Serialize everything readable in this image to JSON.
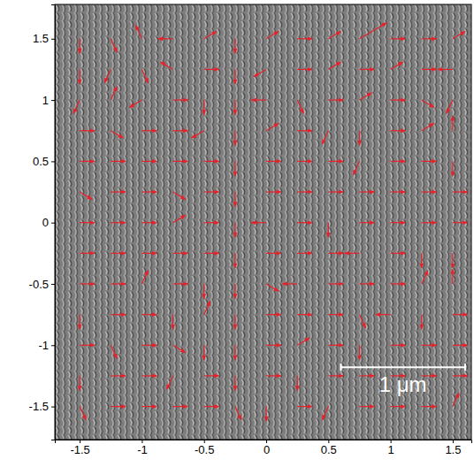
{
  "chart_data": {
    "type": "quiver",
    "color": "#e8202a",
    "xlim": [
      -1.7,
      1.65
    ],
    "ylim": [
      -1.77,
      1.78
    ],
    "xticks": [
      -1.5,
      -1,
      -0.5,
      0,
      0.5,
      1,
      1.5
    ],
    "yticks": [
      -1.5,
      -1,
      -0.5,
      0,
      0.5,
      1,
      1.5
    ],
    "annotations": [
      {
        "text": "1 μm",
        "x": [
          0.6,
          1.6
        ],
        "y": -1.18
      }
    ],
    "arrows": [
      {
        "x": -1.5,
        "y": 1.5,
        "u": 0,
        "v": -0.12
      },
      {
        "x": -1.25,
        "y": 1.5,
        "u": 0.05,
        "v": -0.11
      },
      {
        "x": -1,
        "y": 1.5,
        "u": -0.05,
        "v": 0.11
      },
      {
        "x": -0.75,
        "y": 1.5,
        "u": -0.12,
        "v": 0
      },
      {
        "x": -0.5,
        "y": 1.5,
        "u": 0.1,
        "v": 0.06
      },
      {
        "x": -0.25,
        "y": 1.5,
        "u": 0,
        "v": -0.12
      },
      {
        "x": 0,
        "y": 1.5,
        "u": 0.1,
        "v": 0.06
      },
      {
        "x": 0.25,
        "y": 1.5,
        "u": 0.12,
        "v": 0
      },
      {
        "x": 0.5,
        "y": 1.5,
        "u": 0.1,
        "v": 0.06
      },
      {
        "x": 0.75,
        "y": 1.5,
        "u": 0.22,
        "v": 0.13
      },
      {
        "x": 1,
        "y": 1.5,
        "u": 0.12,
        "v": 0
      },
      {
        "x": 1.25,
        "y": 1.5,
        "u": 0.12,
        "v": 0
      },
      {
        "x": 1.5,
        "y": 1.5,
        "u": 0.1,
        "v": 0.06
      },
      {
        "x": -1.5,
        "y": 1.25,
        "u": 0,
        "v": -0.12
      },
      {
        "x": -1.25,
        "y": 1.25,
        "u": -0.05,
        "v": -0.11
      },
      {
        "x": -1,
        "y": 1.25,
        "u": 0.05,
        "v": -0.11
      },
      {
        "x": -0.75,
        "y": 1.25,
        "u": -0.1,
        "v": 0.06
      },
      {
        "x": -0.5,
        "y": 1.25,
        "u": 0.12,
        "v": 0
      },
      {
        "x": -0.25,
        "y": 1.25,
        "u": 0,
        "v": -0.12
      },
      {
        "x": 0,
        "y": 1.25,
        "u": -0.1,
        "v": -0.06
      },
      {
        "x": 0.25,
        "y": 1.25,
        "u": 0.12,
        "v": 0
      },
      {
        "x": 0.5,
        "y": 1.25,
        "u": 0.1,
        "v": 0.06
      },
      {
        "x": 0.75,
        "y": 1.25,
        "u": 0.12,
        "v": 0
      },
      {
        "x": 1,
        "y": 1.25,
        "u": 0.1,
        "v": 0.06
      },
      {
        "x": 1.25,
        "y": 1.25,
        "u": 0.12,
        "v": 0
      },
      {
        "x": 1.5,
        "y": 1.25,
        "u": -0.12,
        "v": 0
      },
      {
        "x": -1.5,
        "y": 1,
        "u": -0.05,
        "v": -0.11
      },
      {
        "x": -1.25,
        "y": 1,
        "u": 0.05,
        "v": 0.11
      },
      {
        "x": -1,
        "y": 1,
        "u": -0.1,
        "v": -0.06
      },
      {
        "x": -0.75,
        "y": 1,
        "u": 0.12,
        "v": 0
      },
      {
        "x": -0.5,
        "y": 1,
        "u": 0,
        "v": -0.12
      },
      {
        "x": -0.25,
        "y": 1,
        "u": 0,
        "v": -0.12
      },
      {
        "x": 0,
        "y": 1,
        "u": -0.12,
        "v": 0
      },
      {
        "x": 0.25,
        "y": 1,
        "u": 0.05,
        "v": -0.11
      },
      {
        "x": 0.5,
        "y": 1,
        "u": 0.12,
        "v": 0
      },
      {
        "x": 0.75,
        "y": 1,
        "u": 0.1,
        "v": 0.06
      },
      {
        "x": 1,
        "y": 1,
        "u": 0.12,
        "v": 0
      },
      {
        "x": 1.25,
        "y": 1,
        "u": 0.1,
        "v": -0.06
      },
      {
        "x": 1.5,
        "y": 1,
        "u": -0.05,
        "v": -0.11
      },
      {
        "x": -1.5,
        "y": 0.75,
        "u": 0.12,
        "v": 0
      },
      {
        "x": -1.25,
        "y": 0.75,
        "u": 0.1,
        "v": -0.06
      },
      {
        "x": -1,
        "y": 0.75,
        "u": 0.12,
        "v": 0
      },
      {
        "x": -0.75,
        "y": 0.75,
        "u": 0.12,
        "v": 0
      },
      {
        "x": -0.5,
        "y": 0.75,
        "u": -0.1,
        "v": -0.06
      },
      {
        "x": -0.25,
        "y": 0.75,
        "u": 0,
        "v": -0.12
      },
      {
        "x": 0,
        "y": 0.75,
        "u": 0.1,
        "v": 0.06
      },
      {
        "x": 0.25,
        "y": 0.75,
        "u": 0.12,
        "v": 0
      },
      {
        "x": 0.5,
        "y": 0.75,
        "u": -0.05,
        "v": -0.11
      },
      {
        "x": 0.75,
        "y": 0.75,
        "u": 0,
        "v": -0.12
      },
      {
        "x": 1,
        "y": 0.75,
        "u": 0.12,
        "v": 0
      },
      {
        "x": 1.25,
        "y": 0.75,
        "u": 0.1,
        "v": 0.06
      },
      {
        "x": 1.5,
        "y": 0.75,
        "u": 0,
        "v": 0.12
      },
      {
        "x": -1.5,
        "y": 0.5,
        "u": 0.12,
        "v": 0
      },
      {
        "x": -1.25,
        "y": 0.5,
        "u": 0.12,
        "v": 0
      },
      {
        "x": -1,
        "y": 0.5,
        "u": 0.12,
        "v": 0
      },
      {
        "x": -0.75,
        "y": 0.5,
        "u": 0.12,
        "v": 0
      },
      {
        "x": -0.5,
        "y": 0.5,
        "u": 0.12,
        "v": 0
      },
      {
        "x": -0.25,
        "y": 0.5,
        "u": 0,
        "v": -0.12
      },
      {
        "x": 0,
        "y": 0.5,
        "u": 0.12,
        "v": 0
      },
      {
        "x": 0.25,
        "y": 0.5,
        "u": 0.12,
        "v": 0
      },
      {
        "x": 0.5,
        "y": 0.5,
        "u": 0.12,
        "v": 0
      },
      {
        "x": 0.75,
        "y": 0.5,
        "u": -0.05,
        "v": -0.11
      },
      {
        "x": 1,
        "y": 0.5,
        "u": 0.12,
        "v": 0
      },
      {
        "x": 1.25,
        "y": 0.5,
        "u": 0.12,
        "v": 0
      },
      {
        "x": 1.5,
        "y": 0.5,
        "u": 0,
        "v": -0.12
      },
      {
        "x": -1.5,
        "y": 0.25,
        "u": 0.1,
        "v": -0.06
      },
      {
        "x": -1.25,
        "y": 0.25,
        "u": 0.12,
        "v": 0
      },
      {
        "x": -1,
        "y": 0.25,
        "u": 0.12,
        "v": 0
      },
      {
        "x": -0.75,
        "y": 0.25,
        "u": 0.1,
        "v": -0.06
      },
      {
        "x": -0.5,
        "y": 0.25,
        "u": 0.12,
        "v": 0
      },
      {
        "x": -0.25,
        "y": 0.25,
        "u": 0,
        "v": -0.12
      },
      {
        "x": 0,
        "y": 0.25,
        "u": 0.12,
        "v": 0
      },
      {
        "x": 0.25,
        "y": 0.25,
        "u": 0.12,
        "v": 0
      },
      {
        "x": 0.5,
        "y": 0.25,
        "u": 0.12,
        "v": 0
      },
      {
        "x": 0.75,
        "y": 0.25,
        "u": 0.12,
        "v": 0
      },
      {
        "x": 1,
        "y": 0.25,
        "u": 0.12,
        "v": 0
      },
      {
        "x": 1.25,
        "y": 0.25,
        "u": 0.12,
        "v": 0
      },
      {
        "x": 1.5,
        "y": 0.25,
        "u": 0.12,
        "v": 0
      },
      {
        "x": -1.5,
        "y": 0,
        "u": 0.12,
        "v": 0
      },
      {
        "x": -1.25,
        "y": 0,
        "u": 0.12,
        "v": 0
      },
      {
        "x": -1,
        "y": 0,
        "u": 0.12,
        "v": 0
      },
      {
        "x": -0.75,
        "y": 0,
        "u": 0.1,
        "v": 0.06
      },
      {
        "x": -0.5,
        "y": 0,
        "u": 0.12,
        "v": 0
      },
      {
        "x": -0.25,
        "y": 0,
        "u": 0,
        "v": -0.12
      },
      {
        "x": 0,
        "y": 0,
        "u": -0.12,
        "v": 0
      },
      {
        "x": 0.25,
        "y": 0,
        "u": 0.12,
        "v": 0
      },
      {
        "x": 0.5,
        "y": 0,
        "u": 0,
        "v": -0.12
      },
      {
        "x": 0.75,
        "y": 0,
        "u": 0.12,
        "v": 0
      },
      {
        "x": 1,
        "y": 0,
        "u": 0.12,
        "v": 0
      },
      {
        "x": 1.25,
        "y": 0,
        "u": 0.12,
        "v": 0
      },
      {
        "x": 1.5,
        "y": 0,
        "u": 0.12,
        "v": 0
      },
      {
        "x": -1.5,
        "y": -0.25,
        "u": 0.12,
        "v": 0
      },
      {
        "x": -1.25,
        "y": -0.25,
        "u": 0.12,
        "v": 0
      },
      {
        "x": -1,
        "y": -0.25,
        "u": 0.12,
        "v": 0
      },
      {
        "x": -0.75,
        "y": -0.25,
        "u": 0.12,
        "v": 0
      },
      {
        "x": -0.5,
        "y": -0.25,
        "u": 0.12,
        "v": 0
      },
      {
        "x": -0.25,
        "y": -0.25,
        "u": 0,
        "v": -0.12
      },
      {
        "x": 0,
        "y": -0.25,
        "u": 0.12,
        "v": 0
      },
      {
        "x": 0.25,
        "y": -0.25,
        "u": 0.12,
        "v": 0
      },
      {
        "x": 0.5,
        "y": -0.25,
        "u": 0.12,
        "v": 0
      },
      {
        "x": 0.75,
        "y": -0.25,
        "u": -0.12,
        "v": 0
      },
      {
        "x": 1,
        "y": -0.25,
        "u": 0.12,
        "v": 0
      },
      {
        "x": 1.25,
        "y": -0.25,
        "u": 0,
        "v": -0.12
      },
      {
        "x": 1.5,
        "y": -0.25,
        "u": 0,
        "v": -0.12
      },
      {
        "x": -1.5,
        "y": -0.5,
        "u": 0.12,
        "v": 0
      },
      {
        "x": -1.25,
        "y": -0.5,
        "u": 0.12,
        "v": 0
      },
      {
        "x": -1,
        "y": -0.5,
        "u": 0.05,
        "v": 0.11
      },
      {
        "x": -0.75,
        "y": -0.5,
        "u": 0.12,
        "v": 0
      },
      {
        "x": -0.5,
        "y": -0.5,
        "u": 0,
        "v": -0.12
      },
      {
        "x": -0.25,
        "y": -0.5,
        "u": 0,
        "v": -0.12
      },
      {
        "x": 0,
        "y": -0.5,
        "u": 0.1,
        "v": -0.06
      },
      {
        "x": 0.25,
        "y": -0.5,
        "u": -0.12,
        "v": 0
      },
      {
        "x": 0.5,
        "y": -0.5,
        "u": 0.12,
        "v": 0
      },
      {
        "x": 0.75,
        "y": -0.5,
        "u": 0.12,
        "v": 0
      },
      {
        "x": 1,
        "y": -0.5,
        "u": 0.12,
        "v": 0
      },
      {
        "x": 1.25,
        "y": -0.5,
        "u": 0.05,
        "v": 0.11
      },
      {
        "x": 1.5,
        "y": -0.5,
        "u": 0,
        "v": 0.12
      },
      {
        "x": -1.5,
        "y": -0.75,
        "u": 0,
        "v": -0.12
      },
      {
        "x": -1.25,
        "y": -0.75,
        "u": 0.12,
        "v": 0
      },
      {
        "x": -1,
        "y": -0.75,
        "u": 0.12,
        "v": 0
      },
      {
        "x": -0.75,
        "y": -0.75,
        "u": 0,
        "v": -0.12
      },
      {
        "x": -0.5,
        "y": -0.75,
        "u": 0.05,
        "v": 0.11
      },
      {
        "x": -0.25,
        "y": -0.75,
        "u": 0,
        "v": -0.12
      },
      {
        "x": 0,
        "y": -0.75,
        "u": 0.12,
        "v": 0
      },
      {
        "x": 0.25,
        "y": -0.75,
        "u": 0.12,
        "v": 0
      },
      {
        "x": 0.5,
        "y": -0.75,
        "u": 0.12,
        "v": 0
      },
      {
        "x": 0.75,
        "y": -0.75,
        "u": 0.05,
        "v": -0.11
      },
      {
        "x": 1,
        "y": -0.75,
        "u": -0.12,
        "v": 0
      },
      {
        "x": 1.25,
        "y": -0.75,
        "u": 0,
        "v": -0.12
      },
      {
        "x": 1.5,
        "y": -0.75,
        "u": 0.12,
        "v": 0
      },
      {
        "x": -1.5,
        "y": -1,
        "u": 0.12,
        "v": 0
      },
      {
        "x": -1.25,
        "y": -1,
        "u": 0.05,
        "v": -0.11
      },
      {
        "x": -1,
        "y": -1,
        "u": 0.12,
        "v": 0
      },
      {
        "x": -0.75,
        "y": -1,
        "u": 0.1,
        "v": -0.06
      },
      {
        "x": -0.5,
        "y": -1,
        "u": 0,
        "v": -0.12
      },
      {
        "x": -0.25,
        "y": -1,
        "u": 0,
        "v": -0.12
      },
      {
        "x": 0,
        "y": -1,
        "u": 0.12,
        "v": 0
      },
      {
        "x": 0.25,
        "y": -1,
        "u": 0.1,
        "v": 0.06
      },
      {
        "x": 0.5,
        "y": -1,
        "u": 0.12,
        "v": 0
      },
      {
        "x": 0.75,
        "y": -1,
        "u": 0,
        "v": -0.12
      },
      {
        "x": 1,
        "y": -1,
        "u": 0.12,
        "v": 0
      },
      {
        "x": 1.25,
        "y": -1,
        "u": 0.12,
        "v": 0
      },
      {
        "x": 1.5,
        "y": -1,
        "u": 0.12,
        "v": 0
      },
      {
        "x": -1.5,
        "y": -1.25,
        "u": 0,
        "v": -0.12
      },
      {
        "x": -1.25,
        "y": -1.25,
        "u": 0.12,
        "v": 0
      },
      {
        "x": -1,
        "y": -1.25,
        "u": 0.12,
        "v": 0
      },
      {
        "x": -0.75,
        "y": -1.25,
        "u": -0.05,
        "v": -0.11
      },
      {
        "x": -0.5,
        "y": -1.25,
        "u": 0.12,
        "v": 0
      },
      {
        "x": -0.25,
        "y": -1.25,
        "u": 0,
        "v": -0.12
      },
      {
        "x": 0,
        "y": -1.25,
        "u": 0.12,
        "v": 0
      },
      {
        "x": 0.25,
        "y": -1.25,
        "u": 0,
        "v": -0.12
      },
      {
        "x": 0.5,
        "y": -1.25,
        "u": 0.12,
        "v": 0
      },
      {
        "x": 0.75,
        "y": -1.25,
        "u": 0.12,
        "v": 0
      },
      {
        "x": 1,
        "y": -1.25,
        "u": 0.12,
        "v": 0
      },
      {
        "x": 1.25,
        "y": -1.25,
        "u": 0.12,
        "v": 0
      },
      {
        "x": 1.5,
        "y": -1.25,
        "u": 0.12,
        "v": 0
      },
      {
        "x": -1.5,
        "y": -1.5,
        "u": 0.05,
        "v": -0.11
      },
      {
        "x": -1.25,
        "y": -1.5,
        "u": 0.12,
        "v": 0
      },
      {
        "x": -1,
        "y": -1.5,
        "u": 0.12,
        "v": 0
      },
      {
        "x": -0.75,
        "y": -1.5,
        "u": 0.12,
        "v": 0
      },
      {
        "x": -0.5,
        "y": -1.5,
        "u": 0.12,
        "v": 0
      },
      {
        "x": -0.25,
        "y": -1.5,
        "u": 0.05,
        "v": -0.11
      },
      {
        "x": 0,
        "y": -1.5,
        "u": 0,
        "v": -0.12
      },
      {
        "x": 0.25,
        "y": -1.5,
        "u": 0.12,
        "v": 0
      },
      {
        "x": 0.5,
        "y": -1.5,
        "u": -0.05,
        "v": -0.11
      },
      {
        "x": 0.75,
        "y": -1.5,
        "u": 0.12,
        "v": 0
      },
      {
        "x": 1,
        "y": -1.5,
        "u": 0.12,
        "v": 0
      },
      {
        "x": 1.25,
        "y": -1.5,
        "u": 0.12,
        "v": 0
      },
      {
        "x": 1.5,
        "y": -1.5,
        "u": 0.05,
        "v": 0.11
      }
    ]
  }
}
